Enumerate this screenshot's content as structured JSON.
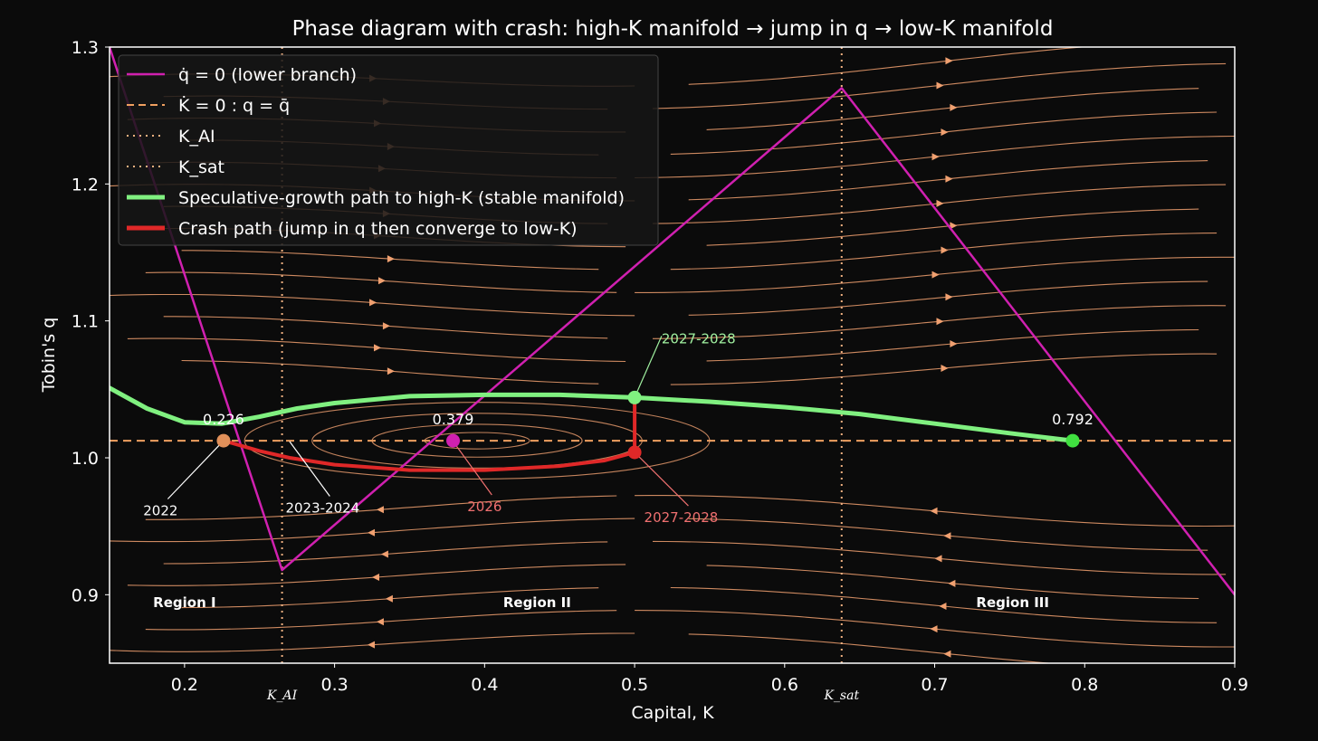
{
  "chart_data": {
    "type": "line",
    "title": "Phase diagram with crash: high-K manifold → jump in q → low-K manifold",
    "xlabel": "Capital, K",
    "ylabel": "Tobin's q",
    "xlim": [
      0.15,
      0.9
    ],
    "ylim": [
      0.85,
      1.3
    ],
    "xticks": [
      0.2,
      0.3,
      0.4,
      0.5,
      0.6,
      0.7,
      0.8,
      0.9
    ],
    "yticks": [
      0.9,
      1.0,
      1.1,
      1.2,
      1.3
    ],
    "xtick_labels": [
      "0.2",
      "0.3",
      "0.4",
      "0.5",
      "0.6",
      "0.7",
      "0.8",
      "0.9"
    ],
    "ytick_labels": [
      "0.9",
      "1.0",
      "1.1",
      "1.2",
      "1.3"
    ],
    "grid": false,
    "legend_placement": "top-left",
    "q_bar": 1.0125,
    "K_AI": 0.265,
    "K_sat": 0.638,
    "colors": {
      "background": "#0b0b0b",
      "stream": "#f0a070",
      "qdot": "#d020b0",
      "kdot": "#f0a060",
      "vline": "#f0b080",
      "green": "#80f080",
      "red": "#e02828",
      "magenta_point": "#d020b0",
      "orange_point": "#e0905a"
    },
    "legend": [
      {
        "label": "q̇ = 0 (lower branch)",
        "style": "solid",
        "color": "#d020b0"
      },
      {
        "label": "K̇ = 0 : q = q̄",
        "style": "dashed",
        "color": "#f0a060"
      },
      {
        "label": "K_AI",
        "style": "dotted",
        "color": "#f0b080"
      },
      {
        "label": "K_sat",
        "style": "dotted",
        "color": "#f0b080"
      },
      {
        "label": "Speculative-growth path to high-K (stable manifold)",
        "style": "solid-thick",
        "color": "#80f080"
      },
      {
        "label": "Crash path (jump in q then converge to low-K)",
        "style": "solid-thick",
        "color": "#e02828"
      }
    ],
    "series": [
      {
        "name": "q̇ = 0 (lower branch)",
        "x": [
          0.15,
          0.265,
          0.638,
          0.9
        ],
        "y": [
          1.3,
          0.918,
          1.27,
          0.9
        ]
      },
      {
        "name": "Speculative-growth path to high-K (stable manifold)",
        "x": [
          0.15,
          0.175,
          0.2,
          0.225,
          0.25,
          0.275,
          0.3,
          0.35,
          0.4,
          0.45,
          0.5,
          0.55,
          0.6,
          0.65,
          0.7,
          0.75,
          0.792
        ],
        "y": [
          1.051,
          1.036,
          1.026,
          1.025,
          1.03,
          1.036,
          1.04,
          1.045,
          1.046,
          1.046,
          1.044,
          1.041,
          1.037,
          1.032,
          1.025,
          1.018,
          1.0125
        ]
      },
      {
        "name": "Crash path (jump in q then converge to low-K)",
        "x": [
          0.5,
          0.5,
          0.48,
          0.45,
          0.4,
          0.35,
          0.3,
          0.27,
          0.25,
          0.226
        ],
        "y": [
          1.044,
          1.004,
          0.998,
          0.994,
          0.991,
          0.991,
          0.995,
          1.0,
          1.005,
          1.0125
        ]
      }
    ],
    "points": [
      {
        "label": "0.226",
        "x": 0.226,
        "y": 1.0125,
        "color": "#e0905a"
      },
      {
        "label": "0.379",
        "x": 0.379,
        "y": 1.0125,
        "color": "#d020b0"
      },
      {
        "label": "",
        "x": 0.5,
        "y": 1.044,
        "color": "#80f080"
      },
      {
        "label": "",
        "x": 0.5,
        "y": 1.004,
        "color": "#e02828"
      },
      {
        "label": "0.792",
        "x": 0.792,
        "y": 1.0125,
        "color": "#40e040"
      }
    ],
    "annotations": [
      {
        "text": "2022",
        "x": 0.184,
        "y": 0.962,
        "to_x": 0.226,
        "to_y": 1.0125,
        "color": "#ffffff"
      },
      {
        "text": "2023-2024",
        "x": 0.292,
        "y": 0.964,
        "to_x": 0.27,
        "to_y": 1.012,
        "color": "#ffffff"
      },
      {
        "text": "2026",
        "x": 0.4,
        "y": 0.965,
        "to_x": 0.379,
        "to_y": 1.012,
        "color": "#f07070"
      },
      {
        "text": "2027-2028",
        "x": 0.531,
        "y": 0.957,
        "to_x": 0.5,
        "to_y": 1.004,
        "color": "#f07070"
      },
      {
        "text": "2027-2028",
        "x": 0.518,
        "y": 1.081,
        "to_x": 0.5,
        "to_y": 1.044,
        "color": "#a0f0a0"
      }
    ],
    "regions": [
      {
        "text": "Region I",
        "x": 0.2,
        "y": 0.895
      },
      {
        "text": "Region II",
        "x": 0.435,
        "y": 0.895
      },
      {
        "text": "Region III",
        "x": 0.752,
        "y": 0.895
      }
    ],
    "vline_labels": [
      {
        "text": "K_AI",
        "x": 0.265
      },
      {
        "text": "K_sat",
        "x": 0.638
      }
    ]
  }
}
